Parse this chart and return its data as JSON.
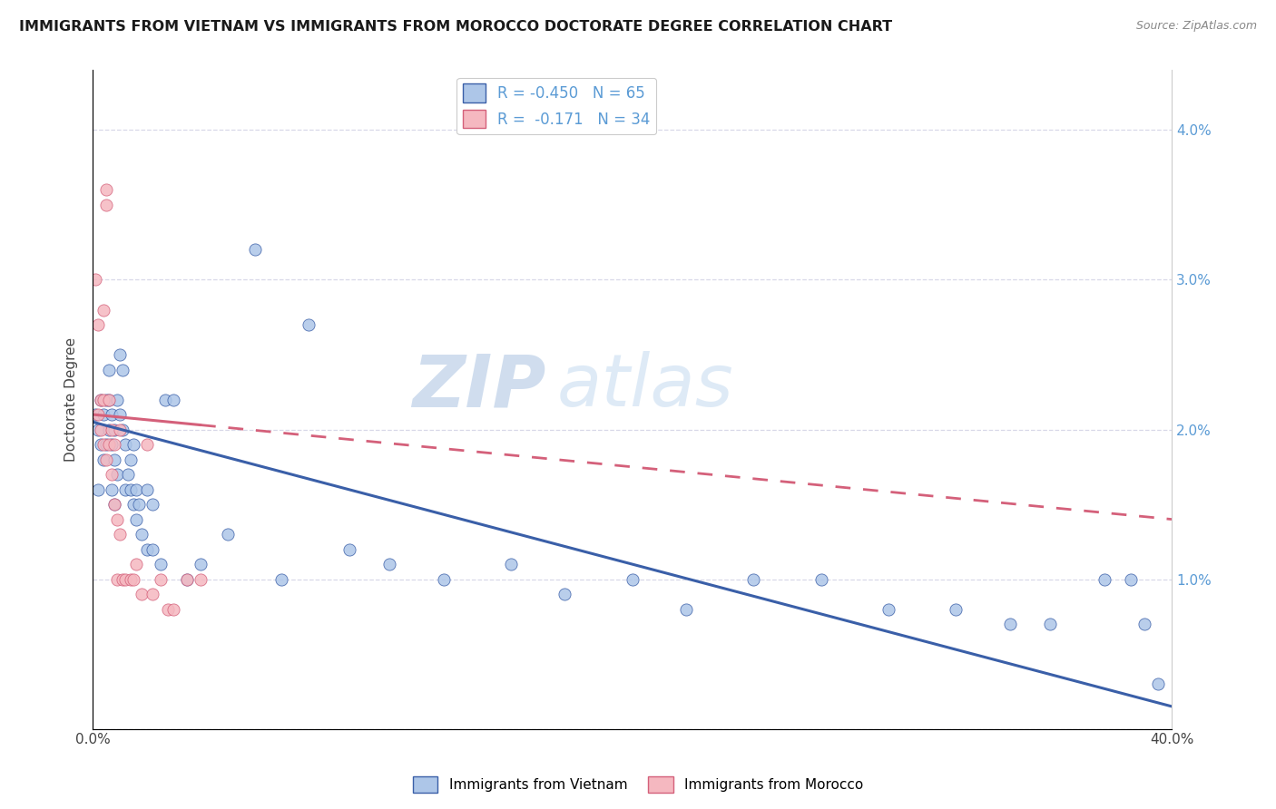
{
  "title": "IMMIGRANTS FROM VIETNAM VS IMMIGRANTS FROM MOROCCO DOCTORATE DEGREE CORRELATION CHART",
  "source": "Source: ZipAtlas.com",
  "ylabel": "Doctorate Degree",
  "xlim": [
    0.0,
    0.4
  ],
  "ylim": [
    0.0,
    0.044
  ],
  "yticks": [
    0.0,
    0.01,
    0.02,
    0.03,
    0.04
  ],
  "ytick_labels": [
    "",
    "1.0%",
    "2.0%",
    "3.0%",
    "4.0%"
  ],
  "xticks": [
    0.0,
    0.1,
    0.2,
    0.3,
    0.4
  ],
  "xtick_labels": [
    "0.0%",
    "",
    "",
    "",
    "40.0%"
  ],
  "legend_R1": "R = -0.450",
  "legend_N1": "N = 65",
  "legend_R2": "R =  -0.171",
  "legend_N2": "N = 34",
  "color_vietnam": "#adc6e8",
  "color_morocco": "#f5b8c0",
  "line_color_vietnam": "#3a5fa8",
  "line_color_morocco": "#d4607a",
  "watermark_zip": "ZIP",
  "watermark_atlas": "atlas",
  "background_color": "#ffffff",
  "grid_color": "#d8d8e8",
  "vietnam_x": [
    0.001,
    0.002,
    0.002,
    0.003,
    0.003,
    0.004,
    0.004,
    0.005,
    0.005,
    0.006,
    0.006,
    0.006,
    0.007,
    0.007,
    0.007,
    0.008,
    0.008,
    0.008,
    0.009,
    0.009,
    0.01,
    0.01,
    0.011,
    0.011,
    0.012,
    0.012,
    0.013,
    0.014,
    0.014,
    0.015,
    0.015,
    0.016,
    0.016,
    0.017,
    0.018,
    0.02,
    0.02,
    0.022,
    0.022,
    0.025,
    0.027,
    0.03,
    0.035,
    0.04,
    0.05,
    0.06,
    0.07,
    0.08,
    0.095,
    0.11,
    0.13,
    0.155,
    0.175,
    0.2,
    0.22,
    0.245,
    0.27,
    0.295,
    0.32,
    0.34,
    0.355,
    0.375,
    0.385,
    0.39,
    0.395
  ],
  "vietnam_y": [
    0.021,
    0.02,
    0.016,
    0.022,
    0.019,
    0.021,
    0.018,
    0.022,
    0.019,
    0.024,
    0.022,
    0.02,
    0.021,
    0.019,
    0.016,
    0.02,
    0.018,
    0.015,
    0.022,
    0.017,
    0.025,
    0.021,
    0.024,
    0.02,
    0.019,
    0.016,
    0.017,
    0.016,
    0.018,
    0.015,
    0.019,
    0.016,
    0.014,
    0.015,
    0.013,
    0.016,
    0.012,
    0.015,
    0.012,
    0.011,
    0.022,
    0.022,
    0.01,
    0.011,
    0.013,
    0.032,
    0.01,
    0.027,
    0.012,
    0.011,
    0.01,
    0.011,
    0.009,
    0.01,
    0.008,
    0.01,
    0.01,
    0.008,
    0.008,
    0.007,
    0.007,
    0.01,
    0.01,
    0.007,
    0.003
  ],
  "morocco_x": [
    0.001,
    0.002,
    0.002,
    0.003,
    0.003,
    0.004,
    0.004,
    0.004,
    0.005,
    0.005,
    0.005,
    0.006,
    0.006,
    0.007,
    0.007,
    0.008,
    0.008,
    0.009,
    0.009,
    0.01,
    0.01,
    0.011,
    0.012,
    0.014,
    0.015,
    0.016,
    0.018,
    0.02,
    0.022,
    0.025,
    0.028,
    0.03,
    0.035,
    0.04
  ],
  "morocco_y": [
    0.03,
    0.021,
    0.027,
    0.022,
    0.02,
    0.028,
    0.022,
    0.019,
    0.036,
    0.035,
    0.018,
    0.022,
    0.019,
    0.02,
    0.017,
    0.019,
    0.015,
    0.014,
    0.01,
    0.02,
    0.013,
    0.01,
    0.01,
    0.01,
    0.01,
    0.011,
    0.009,
    0.019,
    0.009,
    0.01,
    0.008,
    0.008,
    0.01,
    0.01
  ],
  "viet_line_x0": 0.0,
  "viet_line_x1": 0.4,
  "viet_line_y0": 0.0205,
  "viet_line_y1": 0.0015,
  "moroc_line_x0": 0.0,
  "moroc_line_x1": 0.4,
  "moroc_line_y0": 0.021,
  "moroc_line_y1": 0.014
}
